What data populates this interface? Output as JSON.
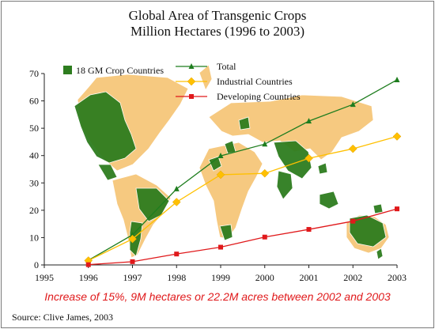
{
  "title_line1": "Global Area of Transgenic Crops",
  "title_line2": "Million Hectares (1996 to 2003)",
  "annotation": "Increase of 15%, 9M hectares or 22.2M acres between 2002 and 2003",
  "source": "Source: Clive James, 2003",
  "map_legend": {
    "label": "18 GM Crop Countries",
    "color": "#2e7d1f"
  },
  "map_colors": {
    "gm_countries": "#2e7d1f",
    "other_land": "#f6c77a"
  },
  "chart_data": {
    "type": "line",
    "x": [
      1996,
      1997,
      1998,
      1999,
      2000,
      2001,
      2002,
      2003
    ],
    "x_tick_labels": [
      "1995",
      "1996",
      "1997",
      "1998",
      "1999",
      "2000",
      "2001",
      "2002",
      "2003"
    ],
    "y_tick_labels": [
      "0",
      "10",
      "20",
      "30",
      "40",
      "50",
      "60",
      "70"
    ],
    "xlim": [
      1995,
      2003
    ],
    "ylim": [
      0,
      70
    ],
    "grid": false,
    "legend_position": "top-center",
    "series": [
      {
        "name": "Total",
        "color": "#1e7d1e",
        "marker": "triangle",
        "values": [
          1.7,
          11.0,
          27.8,
          39.9,
          44.2,
          52.6,
          58.7,
          67.7
        ]
      },
      {
        "name": "Industrial Countries",
        "color": "#ffc000",
        "marker": "diamond",
        "values": [
          1.6,
          9.5,
          23.0,
          33.0,
          33.5,
          39.0,
          42.5,
          47.0
        ]
      },
      {
        "name": "Developing Countries",
        "color": "#e0191b",
        "marker": "square",
        "values": [
          0.1,
          1.2,
          4.0,
          6.5,
          10.2,
          13.0,
          16.0,
          20.5
        ]
      }
    ]
  }
}
